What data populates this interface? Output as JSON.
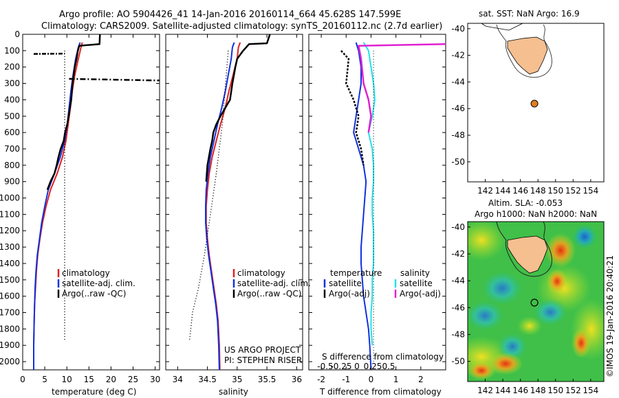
{
  "header": {
    "line1": "Argo profile: AO 5904426_41 14-Jan-2016 20160114_664 45.628S 147.599E",
    "line2": "Climatology: CARS2009. Satellite-adjusted climatology: synTS_20160112.nc (2.7d earlier)"
  },
  "colors": {
    "climatology": "#e02020",
    "satellite": "#1030e0",
    "argo": "#000000",
    "sal_satellite": "#20e0e8",
    "sal_argo": "#e020d0",
    "land": "#f5bf90",
    "float_marker": "#e08020"
  },
  "chart_data": [
    {
      "type": "line",
      "id": "temperature",
      "xlabel": "temperature (deg C)",
      "xlim": [
        0,
        31
      ],
      "ylim": [
        2050,
        0
      ],
      "x_ticks": [
        0,
        5,
        10,
        15,
        20,
        25,
        30
      ],
      "y_ticks": [
        0,
        100,
        200,
        300,
        400,
        500,
        600,
        700,
        800,
        900,
        1000,
        1100,
        1200,
        1300,
        1400,
        1500,
        1600,
        1700,
        1800,
        1900,
        2000
      ],
      "legend": [
        "climatology",
        "satellite-adj. clim.",
        "Argo(..raw -QC)"
      ],
      "series": [
        {
          "name": "climatology",
          "x": [
            13.5,
            13.2,
            12.6,
            11.8,
            11.2,
            10.8,
            10.3,
            9.8,
            9.0,
            7.8,
            6.3,
            5.3,
            4.5,
            3.9,
            3.4,
            3.1,
            2.9,
            2.7,
            2.6,
            2.5,
            2.5
          ],
          "y": [
            50,
            80,
            150,
            250,
            350,
            450,
            550,
            650,
            750,
            850,
            950,
            1050,
            1150,
            1250,
            1350,
            1450,
            1550,
            1650,
            1750,
            1900,
            2050
          ]
        },
        {
          "name": "satellite",
          "x": [
            13.0,
            12.6,
            12.0,
            11.4,
            10.9,
            10.5,
            10.1,
            9.5,
            8.5,
            7.2,
            5.8,
            5.0,
            4.3,
            3.8,
            3.3,
            3.0,
            2.8,
            2.7,
            2.6,
            2.5,
            2.5
          ],
          "y": [
            50,
            80,
            150,
            250,
            350,
            450,
            550,
            650,
            750,
            850,
            950,
            1050,
            1150,
            1250,
            1350,
            1450,
            1550,
            1650,
            1750,
            1900,
            2050
          ]
        },
        {
          "name": "argo",
          "x": [
            17.5,
            17.4,
            12.8,
            12.5,
            12.2,
            11.8,
            11.3,
            11.0,
            10.7,
            10.4,
            10.1,
            9.6,
            9.3,
            8.6,
            8.1,
            7.7,
            7.2,
            6.3,
            5.6
          ],
          "y": [
            0,
            60,
            70,
            100,
            150,
            200,
            300,
            400,
            450,
            500,
            550,
            600,
            650,
            700,
            750,
            800,
            850,
            900,
            950
          ]
        },
        {
          "name": "spike-left",
          "x": [
            2.5,
            9.5
          ],
          "y": [
            120,
            118
          ]
        },
        {
          "name": "spike-right",
          "x": [
            10.5,
            31
          ],
          "y": [
            272,
            282
          ]
        },
        {
          "name": "clim-dotted",
          "x": [
            9.5,
            9.5
          ],
          "y": [
            100,
            1870
          ]
        }
      ]
    },
    {
      "type": "line",
      "id": "salinity",
      "xlabel": "salinity",
      "xlim": [
        33.8,
        36.1
      ],
      "ylim": [
        2050,
        0
      ],
      "x_ticks": [
        34,
        34.5,
        35,
        35.5,
        36
      ],
      "x_tick_labels": [
        "34",
        "34.5",
        "35",
        "35.5",
        "36"
      ],
      "legend": [
        "climatology",
        "satellite-adj. clim.",
        "Argo(..raw -QC)"
      ],
      "annotation": [
        "US ARGO PROJECT",
        "PI: STEPHEN RISER"
      ],
      "series": [
        {
          "name": "climatology",
          "x": [
            35.05,
            35.02,
            35.0,
            34.93,
            34.86,
            34.8,
            34.72,
            34.65,
            34.58,
            34.53,
            34.5,
            34.48,
            34.48,
            34.5,
            34.53,
            34.57,
            34.61,
            34.65,
            34.68,
            34.7,
            34.71
          ],
          "y": [
            50,
            80,
            150,
            250,
            350,
            450,
            550,
            650,
            750,
            850,
            950,
            1050,
            1150,
            1250,
            1350,
            1450,
            1550,
            1650,
            1750,
            1900,
            2050
          ]
        },
        {
          "name": "satellite",
          "x": [
            34.95,
            34.92,
            34.9,
            34.85,
            34.8,
            34.74,
            34.67,
            34.61,
            34.55,
            34.51,
            34.48,
            34.47,
            34.47,
            34.49,
            34.52,
            34.56,
            34.6,
            34.64,
            34.67,
            34.69,
            34.7
          ],
          "y": [
            50,
            80,
            150,
            250,
            350,
            450,
            550,
            650,
            750,
            850,
            950,
            1050,
            1150,
            1250,
            1350,
            1450,
            1550,
            1650,
            1750,
            1900,
            2050
          ]
        },
        {
          "name": "argo",
          "x": [
            35.55,
            35.5,
            35.2,
            35.1,
            35.0,
            34.97,
            34.92,
            34.88,
            34.8,
            34.72,
            34.65,
            34.6,
            34.58,
            34.55,
            34.5,
            34.48
          ],
          "y": [
            0,
            55,
            60,
            100,
            150,
            200,
            300,
            400,
            450,
            500,
            550,
            600,
            650,
            700,
            800,
            900
          ]
        },
        {
          "name": "clim-dotted",
          "x": [
            34.85,
            34.75,
            34.65,
            34.55,
            34.45,
            34.35,
            34.25,
            34.2
          ],
          "y": [
            100,
            550,
            850,
            1100,
            1350,
            1550,
            1700,
            1870
          ]
        }
      ]
    },
    {
      "type": "line",
      "id": "difference",
      "xlabel": "T difference from climatology",
      "xlabel2": "S difference from climatology",
      "xlim": [
        -2.5,
        3.0
      ],
      "ylim": [
        2050,
        0
      ],
      "x_ticks": [
        -2,
        -1,
        0,
        1,
        2
      ],
      "x2_ticks": [
        -0.5,
        -0.25,
        0,
        0.25,
        0.5
      ],
      "x2_tick_labels": [
        "-0.5",
        "-0.25",
        "0",
        "0.25",
        "0.5"
      ],
      "legend_t": [
        "temperature",
        "satellite",
        "Argo(-adj)"
      ],
      "legend_s": [
        "salinity",
        "satellite",
        "Argo(-adj)"
      ],
      "series": [
        {
          "name": "T satellite",
          "x": [
            -0.6,
            -0.5,
            -0.4,
            -0.4,
            -0.5,
            -0.6,
            -0.7,
            -0.5,
            -0.3,
            -0.2,
            -0.25,
            -0.3,
            -0.35,
            -0.4,
            -0.4,
            -0.35,
            -0.3,
            -0.2,
            -0.1,
            -0.05,
            0
          ],
          "y": [
            50,
            100,
            200,
            300,
            400,
            500,
            600,
            700,
            800,
            900,
            1000,
            1100,
            1200,
            1300,
            1400,
            1500,
            1600,
            1700,
            1800,
            1900,
            2050
          ]
        },
        {
          "name": "S satellite",
          "x": [
            -0.3,
            -0.1,
            0.0,
            0.1,
            0.15,
            0.05,
            -0.1,
            0.05,
            0.1,
            0.1,
            0.05,
            0.05,
            0.1,
            0.1,
            0.1,
            0.05,
            0.05,
            0.0,
            0.0,
            0.05
          ],
          "y": [
            50,
            100,
            200,
            300,
            400,
            500,
            600,
            700,
            800,
            900,
            1000,
            1100,
            1200,
            1300,
            1400,
            1500,
            1600,
            1700,
            1800,
            1900
          ]
        },
        {
          "name": "T argo",
          "x": [
            -1.2,
            -0.9,
            -1.0,
            -0.7,
            -0.5,
            -0.6,
            -0.4,
            -0.3
          ],
          "y": [
            100,
            150,
            300,
            400,
            500,
            600,
            700,
            800
          ]
        },
        {
          "name": "S argo",
          "x": [
            3.0,
            -0.5,
            -0.4,
            -0.3,
            -0.1,
            0.0,
            -0.1
          ],
          "y": [
            60,
            70,
            150,
            300,
            400,
            500,
            600
          ]
        },
        {
          "name": "zero-dotted",
          "x": [
            0.1,
            0.1
          ],
          "y": [
            100,
            2000
          ]
        }
      ]
    },
    {
      "type": "scatter",
      "id": "map-sst",
      "title": "sat. SST: NaN  Argo: 16.9",
      "xlim": [
        140,
        155.5
      ],
      "ylim": [
        -51.5,
        -39.6
      ],
      "x_ticks": [
        142,
        144,
        146,
        148,
        150,
        152,
        154
      ],
      "y_ticks": [
        -40,
        -42,
        -44,
        -46,
        -48,
        -50
      ],
      "points": [
        {
          "x": 147.599,
          "y": -45.628
        }
      ]
    },
    {
      "type": "heatmap",
      "id": "map-sla",
      "title": "Altim. SLA: -0.053",
      "subtitle": "Argo h1000: NaN  h2000: NaN",
      "xlim": [
        140,
        155.5
      ],
      "ylim": [
        -51.5,
        -39.6
      ],
      "x_ticks": [
        142,
        144,
        146,
        148,
        150,
        152,
        154
      ],
      "y_ticks": [
        -40,
        -42,
        -44,
        -46,
        -48,
        -50
      ],
      "points": [
        {
          "x": 147.599,
          "y": -45.628
        }
      ]
    }
  ],
  "credit": "©IMOS 19-Jan-2016 20:40:21"
}
